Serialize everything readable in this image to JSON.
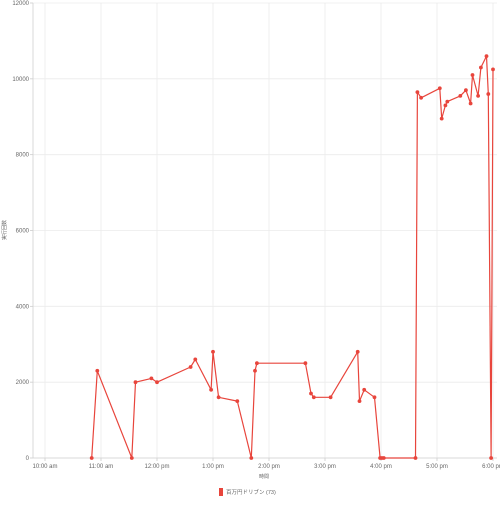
{
  "chart_data": {
    "type": "line",
    "xlabel": "時間",
    "ylabel": "実行回数",
    "x_tick_labels": [
      "10:00 am",
      "11:00 am",
      "12:00 pm",
      "1:00 pm",
      "2:00 pm",
      "3:00 pm",
      "4:00 pm",
      "5:00 pm",
      "6:00 pm"
    ],
    "y_tick_labels": [
      "0",
      "2000",
      "4000",
      "6000",
      "8000",
      "10000",
      "12000"
    ],
    "ylim": [
      0,
      12000
    ],
    "grid": true,
    "legend_position": "bottom",
    "series": [
      {
        "name": "百万円ドリブン (73)",
        "color": "#e8453c",
        "x": [
          "10:50 am",
          "10:56 am",
          "11:33 am",
          "11:37 am",
          "11:54 am",
          "12:00 pm",
          "12:36 pm",
          "12:41 pm",
          "12:58 pm",
          "1:00 pm",
          "1:06 pm",
          "1:26 pm",
          "1:41 pm",
          "1:45 pm",
          "1:47 pm",
          "2:39 pm",
          "2:45 pm",
          "2:48 pm",
          "3:06 pm",
          "3:35 pm",
          "3:37 pm",
          "3:42 pm",
          "3:53 pm",
          "3:59 pm",
          "4:01 pm",
          "4:03 pm",
          "4:37 pm",
          "4:39 pm",
          "4:43 pm",
          "5:03 pm",
          "5:05 pm",
          "5:09 pm",
          "5:11 pm",
          "5:25 pm",
          "5:31 pm",
          "5:36 pm",
          "5:38 pm",
          "5:44 pm",
          "5:47 pm",
          "5:53 pm",
          "5:55 pm",
          "5:58 pm",
          "6:00 pm"
        ],
        "values": [
          0,
          2300,
          0,
          2000,
          2100,
          2000,
          2400,
          2600,
          1800,
          2800,
          1600,
          1500,
          0,
          2300,
          2500,
          2500,
          1700,
          1600,
          1600,
          2800,
          1500,
          1800,
          1600,
          0,
          0,
          0,
          0,
          9650,
          9500,
          9750,
          8950,
          9300,
          9400,
          9550,
          9700,
          9350,
          10100,
          9550,
          10300,
          10600,
          9600,
          0,
          10250
        ]
      }
    ]
  }
}
